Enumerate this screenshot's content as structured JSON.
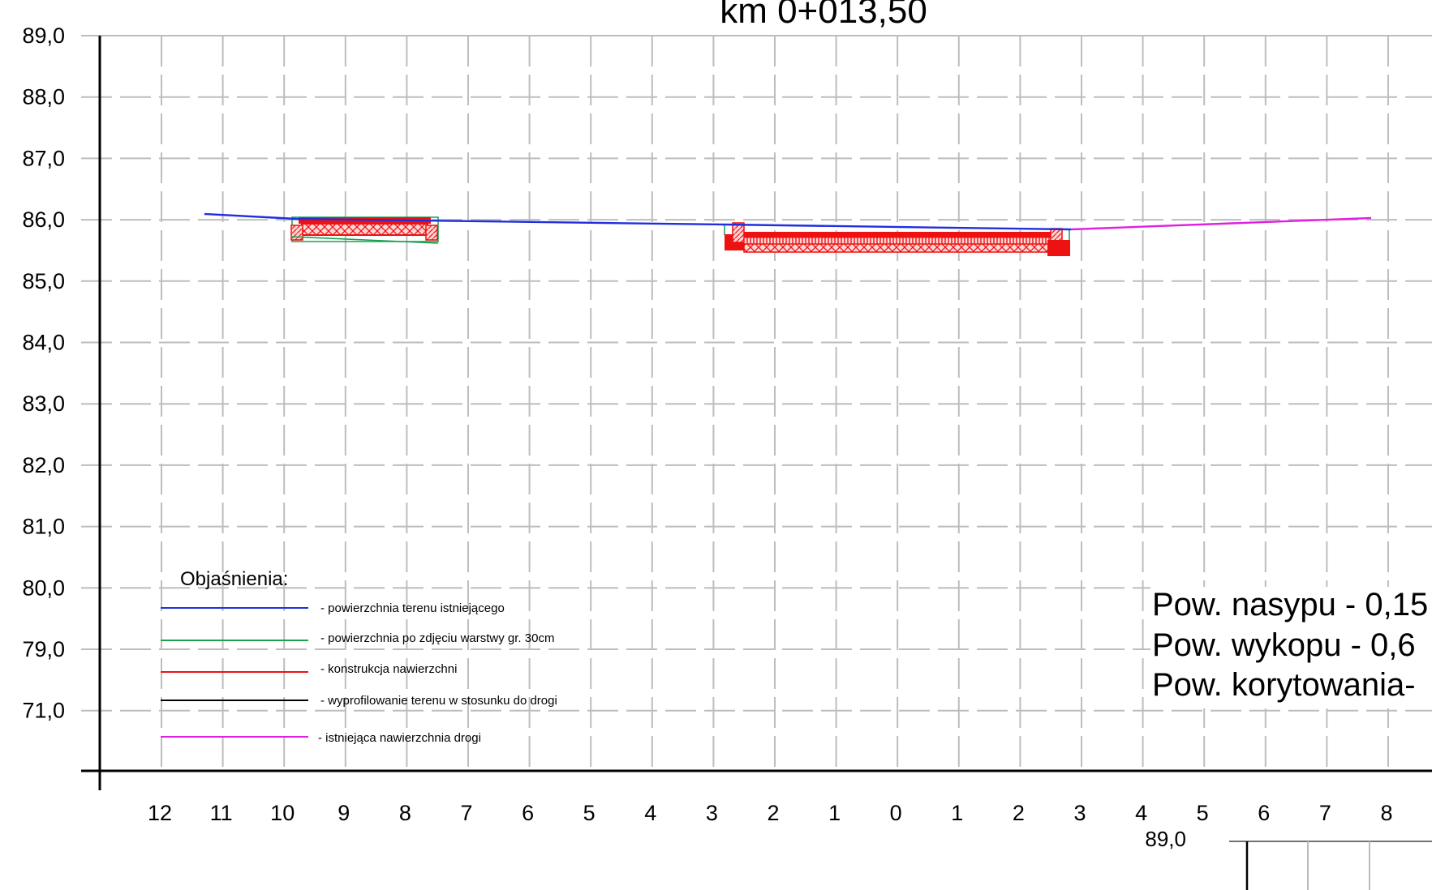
{
  "title": "km 0+013,50",
  "y_axis": {
    "tick_labels": [
      "89,0",
      "88,0",
      "87,0",
      "86,0",
      "85,0",
      "84,0",
      "83,0",
      "82,0",
      "81,0",
      "80,0",
      "79,0",
      "71,0"
    ]
  },
  "x_axis": {
    "tick_labels": [
      "12",
      "11",
      "10",
      "9",
      "8",
      "7",
      "6",
      "5",
      "4",
      "3",
      "2",
      "1",
      "0",
      "1",
      "2",
      "3",
      "4",
      "5",
      "6",
      "7",
      "8"
    ]
  },
  "legend": {
    "title": "Objaśnienia:",
    "items": [
      {
        "label": "- powierzchnia terenu istniejącego",
        "color": "#1f2fe0"
      },
      {
        "label": "- powierzchnia po zdjęciu warstwy  gr. 30cm",
        "color": "#1aa050"
      },
      {
        "label": "- konstrukcja nawierzchni",
        "color": "#ee1111"
      },
      {
        "label": "- wyprofilowanie terenu w stosunku do drogi",
        "color": "#000000"
      },
      {
        "label": "- istniejąca nawierzchnia drogi",
        "color": "#e020e0"
      }
    ]
  },
  "areas": {
    "nasyp": "Pow. nasypu - 0,15",
    "wykop": "Pow. wykopu - 0,6",
    "korytowanie": "Pow. korytowania-"
  },
  "next_section": {
    "label": "89,0"
  },
  "chart_data": {
    "type": "cross-section",
    "title": "km 0+013,50",
    "y_ticks": [
      "89,0",
      "88,0",
      "87,0",
      "86,0",
      "85,0",
      "84,0",
      "83,0",
      "82,0",
      "81,0",
      "80,0",
      "79,0",
      "71,0"
    ],
    "x_ticks": [
      "12",
      "11",
      "10",
      "9",
      "8",
      "7",
      "6",
      "5",
      "4",
      "3",
      "2",
      "1",
      "0",
      "1",
      "2",
      "3",
      "4",
      "5",
      "6",
      "7",
      "8"
    ],
    "series": [
      {
        "name": "- powierzchnia terenu istniejącego",
        "color": "#1f2fe0",
        "x": [
          -11.7,
          -9.7,
          -2.9,
          2.8
        ],
        "y": [
          86.08,
          86.0,
          85.9,
          85.86
        ]
      },
      {
        "name": "- powierzchnia po zdjęciu warstwy  gr. 30cm",
        "color": "#1aa050",
        "x": [
          -9.9,
          -7.5
        ],
        "y": [
          85.73,
          85.63
        ]
      },
      {
        "name": "- istniejąca nawierzchnia drogi",
        "color": "#e020e0",
        "x": [
          2.8,
          7.7
        ],
        "y": [
          85.86,
          86.03
        ]
      }
    ],
    "structures": [
      {
        "name": "- konstrukcja nawierzchni",
        "color": "#ee1111",
        "x_from": -9.8,
        "x_to": -7.6,
        "y_top": 86.03,
        "y_bottom": 85.73
      },
      {
        "name": "- konstrukcja nawierzchni",
        "color": "#ee1111",
        "x_from": -2.9,
        "x_to": 2.8,
        "y_top": 85.88,
        "y_bottom": 85.52
      }
    ],
    "grid": true
  }
}
